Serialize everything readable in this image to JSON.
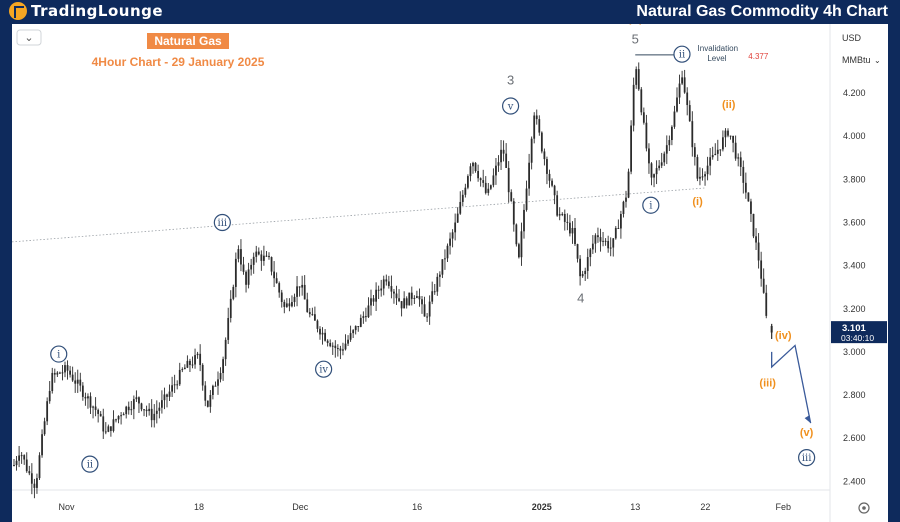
{
  "brand": {
    "name": "TradingLounge"
  },
  "window_title": "Natural Gas Commodity 4h Chart",
  "chart_title": "Natural Gas",
  "chart_subtitle": "4Hour Chart - 29 January 2025",
  "currency": "USD",
  "unit": "MMBtu",
  "dropdown_symbol": "⌄",
  "current_price": {
    "value": "3.101",
    "countdown": "03:40:10"
  },
  "invalidation": {
    "label": "Invalidation Level",
    "value": "4.377",
    "price": 4.377
  },
  "colors": {
    "bg_panel": "#ffffff",
    "header": "#0e2a5c",
    "wave_navy": "#32507a",
    "wave_orange": "#f0901e",
    "title_box": "#f08a45",
    "candle": "#2b2b2b",
    "red": "#e0413a",
    "projection": "#3a5a9a"
  },
  "chart_data": {
    "type": "candlestick",
    "ylim": [
      2.36,
      4.52
    ],
    "yticks": [
      2.4,
      2.6,
      2.8,
      3.0,
      3.2,
      3.4,
      3.6,
      3.8,
      4.0,
      4.2
    ],
    "ytick_labels": [
      "2.400",
      "2.600",
      "2.800",
      "3.000",
      "3.200",
      "3.400",
      "3.600",
      "3.800",
      "4.000",
      "4.200"
    ],
    "x_labels": [
      "Nov",
      "18",
      "Dec",
      "16",
      "2025",
      "13",
      "22",
      "Feb"
    ],
    "x_label_dates": [
      "2024-11-01",
      "2024-11-18",
      "2024-12-01",
      "2024-12-16",
      "2025-01-01",
      "2025-01-13",
      "2025-01-22",
      "2025-02-01"
    ],
    "x_range": [
      "2024-10-25",
      "2025-02-07"
    ],
    "price_path": [
      [
        "2024-10-25",
        2.45
      ],
      [
        "2024-10-26",
        2.55
      ],
      [
        "2024-10-27",
        2.45
      ],
      [
        "2024-10-28",
        2.38
      ],
      [
        "2024-10-30",
        2.88
      ],
      [
        "2024-11-01",
        2.92
      ],
      [
        "2024-11-03",
        2.82
      ],
      [
        "2024-11-05",
        2.72
      ],
      [
        "2024-11-06",
        2.62
      ],
      [
        "2024-11-08",
        2.72
      ],
      [
        "2024-11-10",
        2.78
      ],
      [
        "2024-11-12",
        2.7
      ],
      [
        "2024-11-14",
        2.8
      ],
      [
        "2024-11-16",
        2.92
      ],
      [
        "2024-11-18",
        2.98
      ],
      [
        "2024-11-19",
        2.74
      ],
      [
        "2024-11-21",
        2.95
      ],
      [
        "2024-11-22",
        3.2
      ],
      [
        "2024-11-23",
        3.5
      ],
      [
        "2024-11-24",
        3.3
      ],
      [
        "2024-11-25",
        3.46
      ],
      [
        "2024-11-27",
        3.42
      ],
      [
        "2024-11-29",
        3.2
      ],
      [
        "2024-12-01",
        3.32
      ],
      [
        "2024-12-02",
        3.18
      ],
      [
        "2024-12-04",
        3.08
      ],
      [
        "2024-12-06",
        3.0
      ],
      [
        "2024-12-08",
        3.1
      ],
      [
        "2024-12-10",
        3.22
      ],
      [
        "2024-12-12",
        3.35
      ],
      [
        "2024-12-14",
        3.22
      ],
      [
        "2024-12-16",
        3.28
      ],
      [
        "2024-12-17",
        3.15
      ],
      [
        "2024-12-19",
        3.38
      ],
      [
        "2024-12-21",
        3.6
      ],
      [
        "2024-12-23",
        3.9
      ],
      [
        "2024-12-25",
        3.72
      ],
      [
        "2024-12-27",
        3.95
      ],
      [
        "2024-12-28",
        3.7
      ],
      [
        "2024-12-29",
        3.4
      ],
      [
        "2024-12-31",
        4.12
      ],
      [
        "2025-01-01",
        3.95
      ],
      [
        "2025-01-03",
        3.65
      ],
      [
        "2025-01-05",
        3.55
      ],
      [
        "2025-01-06",
        3.33
      ],
      [
        "2025-01-08",
        3.55
      ],
      [
        "2025-01-10",
        3.48
      ],
      [
        "2025-01-11",
        3.62
      ],
      [
        "2025-01-12",
        3.75
      ],
      [
        "2025-01-13",
        4.36
      ],
      [
        "2025-01-15",
        3.78
      ],
      [
        "2025-01-17",
        3.95
      ],
      [
        "2025-01-18",
        4.1
      ],
      [
        "2025-01-19",
        4.3
      ],
      [
        "2025-01-21",
        3.8
      ],
      [
        "2025-01-23",
        3.9
      ],
      [
        "2025-01-25",
        4.03
      ],
      [
        "2025-01-27",
        3.78
      ],
      [
        "2025-01-29",
        3.4
      ],
      [
        "2025-01-30",
        3.1
      ]
    ],
    "current_price": 3.101,
    "trendline": {
      "x": [
        "2024-10-25",
        "2025-01-22"
      ],
      "y": [
        3.51,
        3.76
      ]
    },
    "projection": [
      [
        "2025-01-30",
        3.0
      ],
      [
        "2025-01-30",
        2.93
      ],
      [
        "2025-02-02",
        3.03
      ],
      [
        "2025-02-04",
        2.67
      ]
    ],
    "wave_labels": [
      {
        "text": "i",
        "date": "2024-10-31",
        "price": 2.99,
        "style": "circle"
      },
      {
        "text": "ii",
        "date": "2024-11-04",
        "price": 2.48,
        "style": "circle"
      },
      {
        "text": "iii",
        "date": "2024-11-21",
        "price": 3.6,
        "style": "circle"
      },
      {
        "text": "iv",
        "date": "2024-12-04",
        "price": 2.92,
        "style": "circle"
      },
      {
        "text": "v",
        "date": "2024-12-28",
        "price": 4.14,
        "style": "circle"
      },
      {
        "text": "3",
        "date": "2024-12-28",
        "price": 4.24,
        "style": "grey"
      },
      {
        "text": "4",
        "date": "2025-01-06",
        "price": 3.23,
        "style": "grey"
      },
      {
        "text": "5",
        "date": "2025-01-13",
        "price": 4.43,
        "style": "grey"
      },
      {
        "text": "(C)",
        "date": "2025-01-13",
        "price": 4.53,
        "style": "orange"
      },
      {
        "text": "ii",
        "date": "2025-01-19",
        "price": 4.38,
        "style": "circle"
      },
      {
        "text": "i",
        "date": "2025-01-15",
        "price": 3.68,
        "style": "circle"
      },
      {
        "text": "(i)",
        "date": "2025-01-21",
        "price": 3.68,
        "style": "orange"
      },
      {
        "text": "(ii)",
        "date": "2025-01-25",
        "price": 4.13,
        "style": "orange"
      },
      {
        "text": "(iii)",
        "date": "2025-01-30",
        "price": 2.84,
        "style": "orange"
      },
      {
        "text": "(iv)",
        "date": "2025-02-01",
        "price": 3.06,
        "style": "orange"
      },
      {
        "text": "(v)",
        "date": "2025-02-04",
        "price": 2.61,
        "style": "orange"
      },
      {
        "text": "iii",
        "date": "2025-02-04",
        "price": 2.51,
        "style": "circle"
      }
    ]
  }
}
